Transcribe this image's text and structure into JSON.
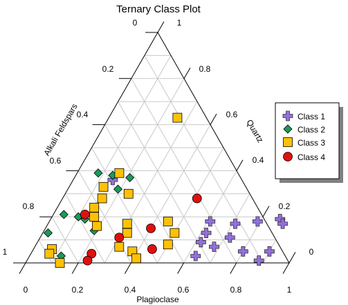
{
  "chart_data": {
    "type": "ternary-scatter",
    "title": "Ternary Class Plot",
    "axes": {
      "bottom": {
        "label": "Plagioclase",
        "ticks": [
          "0",
          "0.2",
          "0.4",
          "0.6",
          "0.8",
          "1"
        ]
      },
      "left": {
        "label": "Alkali Feldspars",
        "ticks": [
          "1",
          "0.8",
          "0.6",
          "0.4",
          "0.2",
          "0"
        ]
      },
      "right": {
        "label": "Quartz",
        "ticks": [
          "0",
          "0.2",
          "0.4",
          "0.6",
          "0.8",
          "1"
        ]
      }
    },
    "grid": true,
    "legend": {
      "placement": "right"
    },
    "series": [
      {
        "name": "Class 1",
        "marker": "plus",
        "color": "#9370db",
        "points": [
          {
            "quartz": 0.18,
            "plagioclase": 0.61
          },
          {
            "quartz": 0.13,
            "plagioclase": 0.62
          },
          {
            "quartz": 0.09,
            "plagioclase": 0.62
          },
          {
            "quartz": 0.03,
            "plagioclase": 0.63
          },
          {
            "quartz": 0.07,
            "plagioclase": 0.68
          },
          {
            "quartz": 0.17,
            "plagioclase": 0.71
          },
          {
            "quartz": 0.11,
            "plagioclase": 0.72
          },
          {
            "quartz": 0.18,
            "plagioclase": 0.79
          },
          {
            "quartz": 0.05,
            "plagioclase": 0.8
          },
          {
            "quartz": 0.19,
            "plagioclase": 0.87
          },
          {
            "quartz": 0.17,
            "plagioclase": 0.89
          },
          {
            "quartz": 0.01,
            "plagioclase": 0.88
          },
          {
            "quartz": 0.05,
            "plagioclase": 0.9
          },
          {
            "quartz": 0.36,
            "plagioclase": 0.15
          }
        ]
      },
      {
        "name": "Class 2",
        "marker": "diamond",
        "color": "#1a9a5a",
        "points": [
          {
            "quartz": 0.39,
            "plagioclase": 0.08
          },
          {
            "quartz": 0.38,
            "plagioclase": 0.14
          },
          {
            "quartz": 0.37,
            "plagioclase": 0.21
          },
          {
            "quartz": 0.32,
            "plagioclase": 0.19
          },
          {
            "quartz": 0.21,
            "plagioclase": 0.04
          },
          {
            "quartz": 0.13,
            "plagioclase": 0.02
          },
          {
            "quartz": 0.2,
            "plagioclase": 0.1
          },
          {
            "quartz": 0.19,
            "plagioclase": 0.13
          },
          {
            "quartz": 0.14,
            "plagioclase": 0.19
          },
          {
            "quartz": 0.03,
            "plagioclase": 0.12
          }
        ]
      },
      {
        "name": "Class 3",
        "marker": "square",
        "color": "#ffc107",
        "points": [
          {
            "quartz": 0.63,
            "plagioclase": 0.26
          },
          {
            "quartz": 0.39,
            "plagioclase": 0.16
          },
          {
            "quartz": 0.33,
            "plagioclase": 0.13
          },
          {
            "quartz": 0.3,
            "plagioclase": 0.24
          },
          {
            "quartz": 0.28,
            "plagioclase": 0.15
          },
          {
            "quartz": 0.24,
            "plagioclase": 0.14
          },
          {
            "quartz": 0.2,
            "plagioclase": 0.16
          },
          {
            "quartz": 0.16,
            "plagioclase": 0.19
          },
          {
            "quartz": 0.17,
            "plagioclase": 0.3
          },
          {
            "quartz": 0.13,
            "plagioclase": 0.32
          },
          {
            "quartz": 0.18,
            "plagioclase": 0.45
          },
          {
            "quartz": 0.13,
            "plagioclase": 0.5
          },
          {
            "quartz": 0.08,
            "plagioclase": 0.5
          },
          {
            "quartz": 0.05,
            "plagioclase": 0.38
          },
          {
            "quartz": 0.02,
            "plagioclase": 0.41
          },
          {
            "quartz": 0.0,
            "plagioclase": 0.13
          },
          {
            "quartz": 0.06,
            "plagioclase": 0.07
          },
          {
            "quartz": 0.04,
            "plagioclase": 0.07
          },
          {
            "quartz": 0.07,
            "plagioclase": 0.32
          }
        ]
      },
      {
        "name": "Class 4",
        "marker": "circle",
        "color": "#e01010",
        "points": [
          {
            "quartz": 0.28,
            "plagioclase": 0.51
          },
          {
            "quartz": 0.21,
            "plagioclase": 0.12
          },
          {
            "quartz": 0.15,
            "plagioclase": 0.4
          },
          {
            "quartz": 0.11,
            "plagioclase": 0.3
          },
          {
            "quartz": 0.06,
            "plagioclase": 0.45
          },
          {
            "quartz": 0.04,
            "plagioclase": 0.23
          },
          {
            "quartz": 0.01,
            "plagioclase": 0.23
          }
        ]
      }
    ]
  }
}
